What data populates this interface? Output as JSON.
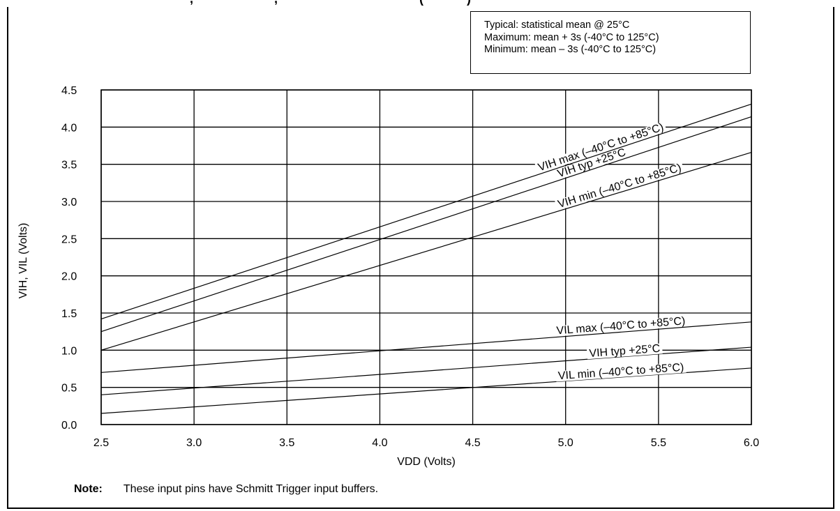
{
  "header_fragment": "—, ——— ——, —————— ——— (———)",
  "legend": {
    "typical": "Typical:  statistical mean @ 25°C",
    "maximum": "Maximum:  mean + 3s (-40°C to 125°C)",
    "minimum": "Minimum:   mean – 3s (-40°C to 125°C)"
  },
  "note": {
    "label": "Note:",
    "text": "These input pins have Schmitt Trigger input buffers."
  },
  "chart_data": {
    "type": "line",
    "title": "",
    "xlabel": "VDD (Volts)",
    "ylabel": "VIH, VIL (Volts)",
    "xlim": [
      2.5,
      6.0
    ],
    "ylim": [
      0.0,
      4.5
    ],
    "x_ticks": [
      "2.5",
      "3.0",
      "3.5",
      "4.0",
      "4.5",
      "5.0",
      "5.5",
      "6.0"
    ],
    "y_ticks": [
      "0.0",
      "0.5",
      "1.0",
      "1.5",
      "2.0",
      "2.5",
      "3.0",
      "3.5",
      "4.0",
      "4.5"
    ],
    "grid": true,
    "series": [
      {
        "name": "VIH max (–40°C to +85°C)",
        "x": [
          2.5,
          6.0
        ],
        "y": [
          1.42,
          4.31
        ]
      },
      {
        "name": "VIH typ +25°C",
        "x": [
          2.5,
          6.0
        ],
        "y": [
          1.25,
          4.14
        ]
      },
      {
        "name": "VIH min (–40°C to +85°C)",
        "x": [
          2.5,
          6.0
        ],
        "y": [
          1.0,
          3.66
        ]
      },
      {
        "name": "VIL max (–40°C to +85°C)",
        "x": [
          2.5,
          6.0
        ],
        "y": [
          0.7,
          1.38
        ]
      },
      {
        "name": "VIH typ +25°C",
        "x": [
          2.5,
          6.0
        ],
        "y": [
          0.4,
          1.04
        ]
      },
      {
        "name": "VIL min (–40°C to +85°C)",
        "x": [
          2.5,
          6.0
        ],
        "y": [
          0.15,
          0.76
        ]
      }
    ]
  }
}
